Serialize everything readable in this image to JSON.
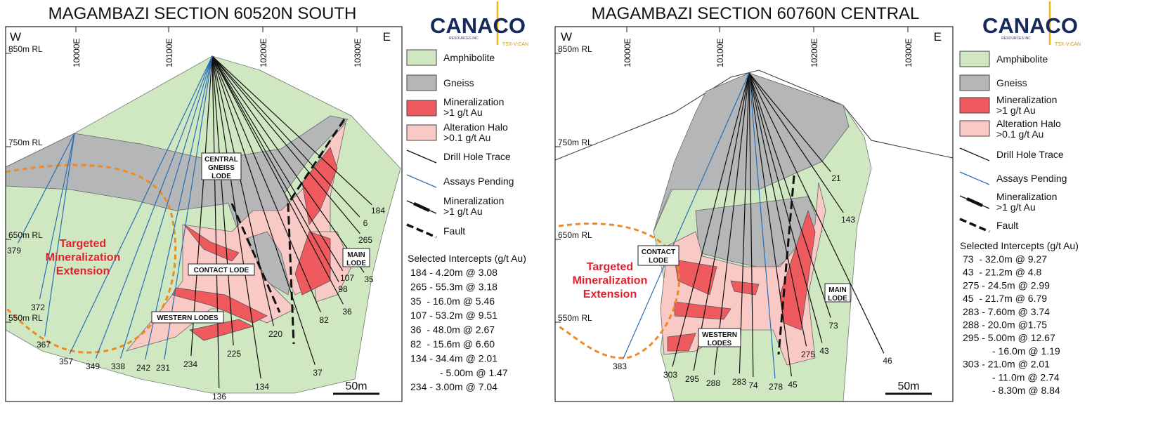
{
  "panels": [
    {
      "title": "MAGAMBAZI SECTION 60520N SOUTH",
      "compass": [
        "W",
        "E"
      ],
      "rl_labels": [
        "850m RL",
        "750m RL",
        "650m RL",
        "550m RL"
      ],
      "easting_labels": [
        "10000E",
        "10100E",
        "10200E",
        "10300E"
      ],
      "holes": [
        "184",
        "6",
        "265",
        "107",
        "35",
        "98",
        "36",
        "82",
        "220",
        "37",
        "134",
        "136",
        "225",
        "234",
        "231",
        "242",
        "338",
        "349",
        "357",
        "367",
        "372",
        "379"
      ],
      "lode_labels": [
        [
          "CENTRAL",
          "GNEISS",
          "LODE"
        ],
        [
          "CONTACT LODE"
        ],
        [
          "MAIN",
          "LODE"
        ],
        [
          "WESTERN LODES"
        ]
      ],
      "target_label": [
        "Targeted",
        "Mineralization",
        "Extension"
      ],
      "scale_label": "50m",
      "logo": {
        "name": "CANACO",
        "sub": "RESOURCES INC",
        "ticker": "TSX-V:CAN"
      },
      "legend": [
        [
          "Amphibolite"
        ],
        [
          "Gneiss"
        ],
        [
          "Mineralization",
          ">1 g/t Au"
        ],
        [
          "Alteration Halo",
          ">0.1 g/t Au"
        ],
        [
          "Drill Hole Trace"
        ],
        [
          "Assays Pending"
        ],
        [
          "Mineralization",
          ">1 g/t Au"
        ],
        [
          "Fault"
        ]
      ],
      "intercepts_title": "Selected Intercepts (g/t Au)",
      "intercepts": [
        "184 - 4.20m @ 3.08",
        "265 - 55.3m @ 3.18",
        "35  - 16.0m @ 5.46",
        "107 - 53.2m @ 9.51",
        "36  - 48.0m @ 2.67",
        "82  - 15.6m @ 6.60",
        "134 - 34.4m @ 2.01",
        "- 5.00m @ 1.47",
        "234 - 3.00m @ 7.04"
      ]
    },
    {
      "title": "MAGAMBAZI SECTION 60760N CENTRAL",
      "compass": [
        "W",
        "E"
      ],
      "rl_labels": [
        "850m RL",
        "750m RL",
        "650m RL",
        "550m RL"
      ],
      "easting_labels": [
        "10000E",
        "10100E",
        "10200E",
        "10300E"
      ],
      "holes": [
        "21",
        "143",
        "73",
        "43",
        "275",
        "46",
        "45",
        "278",
        "74",
        "283",
        "288",
        "295",
        "303",
        "383"
      ],
      "lode_labels": [
        [
          "CONTACT",
          "LODE"
        ],
        [
          "MAIN",
          "LODE"
        ],
        [
          "WESTERN",
          "LODES"
        ]
      ],
      "target_label": [
        "Targeted",
        "Mineralization",
        "Extension"
      ],
      "scale_label": "50m",
      "logo": {
        "name": "CANACO",
        "sub": "RESOURCES INC",
        "ticker": "TSX-V:CAN"
      },
      "legend": [
        [
          "Amphibolite"
        ],
        [
          "Gneiss"
        ],
        [
          "Mineralization",
          ">1 g/t Au"
        ],
        [
          "Alteration Halo",
          ">0.1 g/t Au"
        ],
        [
          "Drill Hole Trace"
        ],
        [
          "Assays Pending"
        ],
        [
          "Mineralization",
          ">1 g/t Au"
        ],
        [
          "Fault"
        ]
      ],
      "intercepts_title": "Selected Intercepts (g/t Au)",
      "intercepts": [
        "73  - 32.0m @ 9.27",
        "43  - 21.2m @ 4.8",
        "275 - 24.5m @ 2.99",
        "45  - 21.7m @ 6.79",
        "283 - 7.60m @ 3.74",
        "288 - 20.0m @1.75",
        "295 - 5.00m @ 12.67",
        "- 16.0m @ 1.19",
        "303 - 21.0m @ 2.01",
        "- 11.0m @ 2.74",
        "- 8.30m @ 8.84"
      ]
    }
  ]
}
